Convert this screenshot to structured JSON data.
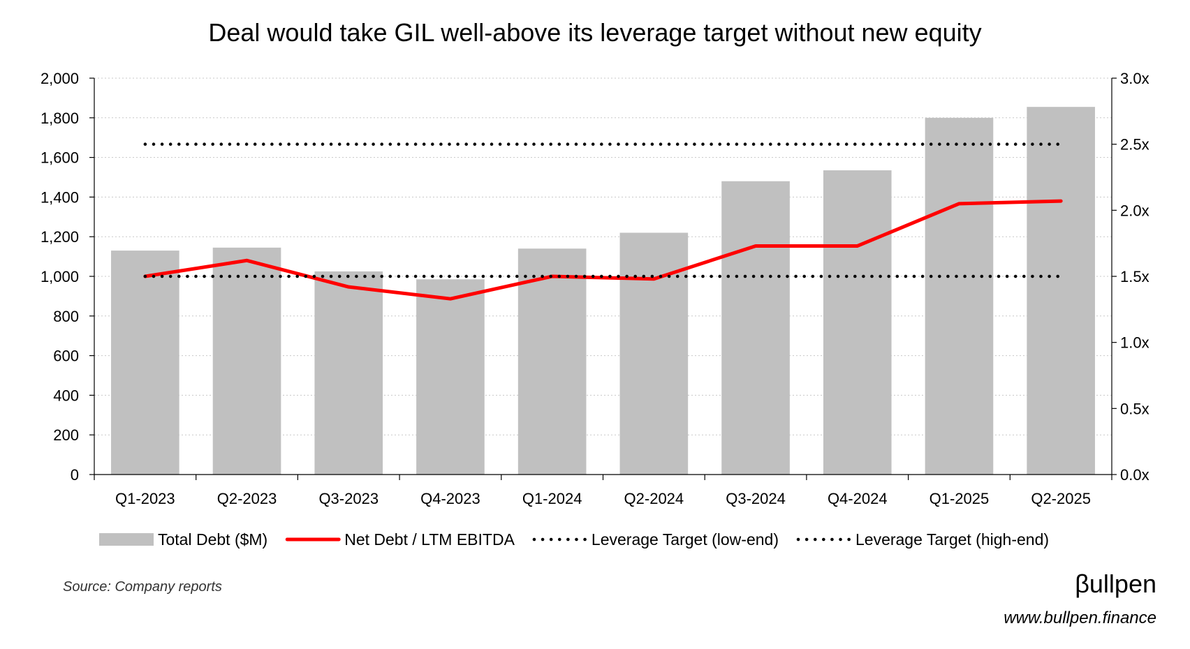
{
  "chart_data": {
    "type": "bar",
    "title": "Deal would take GIL well-above its leverage target without new equity",
    "categories": [
      "Q1-2023",
      "Q2-2023",
      "Q3-2023",
      "Q4-2023",
      "Q1-2024",
      "Q2-2024",
      "Q3-2024",
      "Q4-2024",
      "Q1-2025",
      "Q2-2025"
    ],
    "series": [
      {
        "name": "Total Debt ($M)",
        "type": "bar",
        "axis": "left",
        "color": "#c0c0c0",
        "values": [
          1130,
          1145,
          1025,
          985,
          1140,
          1220,
          1480,
          1535,
          1800,
          1855
        ]
      },
      {
        "name": "Net Debt / LTM EBITDA",
        "type": "line",
        "axis": "right",
        "color": "#ff0000",
        "values": [
          1.5,
          1.62,
          1.42,
          1.33,
          1.5,
          1.48,
          1.73,
          1.73,
          2.05,
          2.07
        ]
      },
      {
        "name": "Leverage Target (low-end)",
        "type": "line",
        "style": "dotted",
        "axis": "right",
        "color": "#000000",
        "values": [
          1.5,
          1.5,
          1.5,
          1.5,
          1.5,
          1.5,
          1.5,
          1.5,
          1.5,
          1.5
        ]
      },
      {
        "name": "Leverage Target (high-end)",
        "type": "line",
        "style": "dotted",
        "axis": "right",
        "color": "#000000",
        "values": [
          2.5,
          2.5,
          2.5,
          2.5,
          2.5,
          2.5,
          2.5,
          2.5,
          2.5,
          2.5
        ]
      }
    ],
    "y_left": {
      "lim": [
        0,
        2000
      ],
      "ticks": [
        0,
        200,
        400,
        600,
        800,
        1000,
        1200,
        1400,
        1600,
        1800,
        2000
      ],
      "tick_labels": [
        "0",
        "200",
        "400",
        "600",
        "800",
        "1,000",
        "1,200",
        "1,400",
        "1,600",
        "1,800",
        "2,000"
      ]
    },
    "y_right": {
      "lim": [
        0,
        3
      ],
      "ticks": [
        0,
        0.5,
        1,
        1.5,
        2,
        2.5,
        3
      ],
      "tick_labels": [
        "0.0x",
        "0.5x",
        "1.0x",
        "1.5x",
        "2.0x",
        "2.5x",
        "3.0x"
      ]
    },
    "grid": true,
    "legend_position": "bottom"
  },
  "footer": {
    "source": "Source: Company reports",
    "logo": "βullpen",
    "url": "www.bullpen.finance"
  }
}
